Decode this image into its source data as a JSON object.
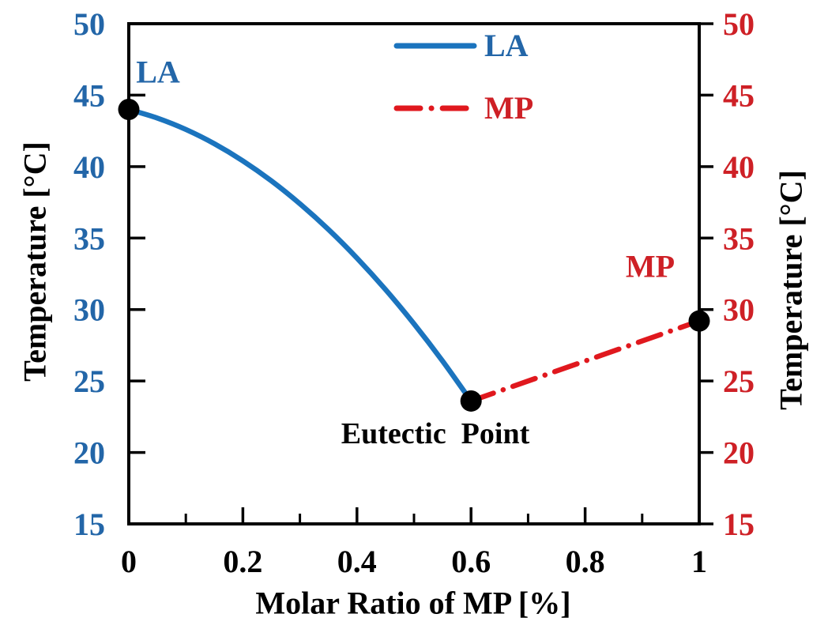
{
  "colors": {
    "background": "#ffffff",
    "axis": "#000000",
    "marker": "#000000",
    "la_line": "#1B74BE",
    "la_text": "#2366A8",
    "mp_line": "#E0181E",
    "mp_text": "#CE2026",
    "black_text": "#000000"
  },
  "chart_data": {
    "type": "line",
    "title": "",
    "xlabel": "Molar Ratio of MP [%]",
    "ylabel_left": "Temperature [°C]",
    "ylabel_right": "Temperature [°C]",
    "xlim": [
      0,
      1
    ],
    "ylim": [
      15,
      50
    ],
    "x_major_ticks": [
      0,
      0.2,
      0.4,
      0.6,
      0.8,
      1
    ],
    "x_tick_labels": [
      "0",
      "0.2",
      "0.4",
      "0.6",
      "0.8",
      "1"
    ],
    "x_minor_ticks": [
      0.1,
      0.3,
      0.5,
      0.7,
      0.9
    ],
    "y_ticks": [
      15,
      20,
      25,
      30,
      35,
      40,
      45,
      50
    ],
    "grid": false,
    "legend_position": "top-center",
    "series": [
      {
        "name": "LA",
        "line_style": "solid",
        "color": "#1B74BE",
        "points": [
          [
            0,
            44
          ],
          [
            0.05,
            43.4
          ],
          [
            0.1,
            42.6
          ],
          [
            0.15,
            41.6
          ],
          [
            0.2,
            40.4
          ],
          [
            0.25,
            39.0
          ],
          [
            0.3,
            37.4
          ],
          [
            0.35,
            35.6
          ],
          [
            0.4,
            33.6
          ],
          [
            0.45,
            31.4
          ],
          [
            0.5,
            29.0
          ],
          [
            0.55,
            26.4
          ],
          [
            0.6,
            23.6
          ]
        ]
      },
      {
        "name": "MP",
        "line_style": "dash-dot",
        "color": "#E0181E",
        "points": [
          [
            0.6,
            23.6
          ],
          [
            1,
            29.2
          ]
        ]
      }
    ],
    "key_points": [
      {
        "label": "LA",
        "x": 0,
        "y": 44
      },
      {
        "label": "Eutectic Point",
        "x": 0.6,
        "y": 23.6
      },
      {
        "label": "MP",
        "x": 1,
        "y": 29.2
      }
    ],
    "annotations": [
      {
        "text": "LA"
      },
      {
        "text": "MP"
      },
      {
        "text": "Eutectic  Point"
      }
    ],
    "legend": {
      "entries": [
        "LA",
        "MP"
      ]
    }
  }
}
